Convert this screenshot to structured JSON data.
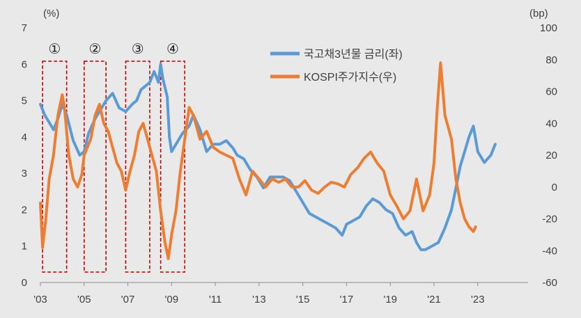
{
  "chart_data": {
    "type": "line",
    "title": "",
    "left_unit": "(%)",
    "right_unit": "(bp)",
    "x_tick_labels": [
      "'03",
      "'05",
      "'07",
      "'09",
      "'11",
      "'13",
      "'15",
      "'17",
      "'19",
      "'21",
      "'23"
    ],
    "x_tick_years": [
      2003,
      2005,
      2007,
      2009,
      2011,
      2013,
      2015,
      2017,
      2019,
      2021,
      2023
    ],
    "xlim": [
      2003,
      2025.3
    ],
    "left_axis": {
      "ylim": [
        0,
        7
      ],
      "ticks": [
        0,
        1,
        2,
        3,
        4,
        5,
        6,
        7
      ]
    },
    "right_axis": {
      "ylim": [
        -60,
        100
      ],
      "ticks": [
        -60,
        -40,
        -20,
        0,
        20,
        40,
        60,
        80,
        100
      ]
    },
    "grid": false,
    "legend_position": "top-right",
    "series": [
      {
        "name": "국고채3년물 금리(좌)",
        "axis": "left",
        "color": "#5b9bd5",
        "x": [
          2003.0,
          2003.2,
          2003.4,
          2003.6,
          2003.8,
          2004.0,
          2004.2,
          2004.5,
          2004.8,
          2005.0,
          2005.2,
          2005.5,
          2005.8,
          2006.0,
          2006.3,
          2006.6,
          2006.9,
          2007.2,
          2007.4,
          2007.6,
          2007.8,
          2008.0,
          2008.2,
          2008.4,
          2008.5,
          2008.6,
          2008.8,
          2008.9,
          2009.0,
          2009.2,
          2009.5,
          2009.8,
          2010.0,
          2010.3,
          2010.6,
          2010.9,
          2011.2,
          2011.5,
          2011.8,
          2012.0,
          2012.3,
          2012.6,
          2012.9,
          2013.2,
          2013.5,
          2013.8,
          2014.1,
          2014.4,
          2014.7,
          2015.0,
          2015.3,
          2015.6,
          2015.9,
          2016.2,
          2016.5,
          2016.8,
          2017.0,
          2017.3,
          2017.6,
          2017.9,
          2018.2,
          2018.5,
          2018.8,
          2019.1,
          2019.4,
          2019.7,
          2020.0,
          2020.2,
          2020.4,
          2020.6,
          2020.9,
          2021.2,
          2021.5,
          2021.8,
          2022.0,
          2022.2,
          2022.4,
          2022.6,
          2022.8,
          2023.0,
          2023.3,
          2023.6,
          2023.8
        ],
        "values": [
          4.9,
          4.6,
          4.4,
          4.2,
          4.5,
          4.9,
          4.6,
          3.9,
          3.5,
          3.6,
          4.1,
          4.5,
          4.8,
          5.0,
          5.2,
          4.8,
          4.7,
          4.9,
          5.0,
          5.3,
          5.4,
          5.5,
          5.8,
          5.5,
          6.0,
          5.6,
          5.1,
          4.0,
          3.6,
          3.8,
          4.1,
          4.3,
          4.6,
          4.2,
          3.6,
          3.8,
          3.8,
          3.9,
          3.7,
          3.5,
          3.4,
          3.1,
          2.9,
          2.6,
          2.9,
          2.9,
          2.9,
          2.8,
          2.5,
          2.2,
          1.9,
          1.8,
          1.7,
          1.6,
          1.5,
          1.3,
          1.6,
          1.7,
          1.8,
          2.1,
          2.3,
          2.2,
          2.0,
          1.9,
          1.5,
          1.3,
          1.4,
          1.1,
          0.9,
          0.9,
          1.0,
          1.1,
          1.5,
          2.0,
          2.6,
          3.2,
          3.6,
          4.0,
          4.3,
          3.6,
          3.3,
          3.5,
          3.8
        ]
      },
      {
        "name": "KOSPI주가지수(우)",
        "axis": "right",
        "color": "#ed7d31",
        "x": [
          2003.0,
          2003.1,
          2003.25,
          2003.4,
          2003.6,
          2003.8,
          2004.0,
          2004.1,
          2004.3,
          2004.5,
          2004.7,
          2004.9,
          2005.0,
          2005.3,
          2005.5,
          2005.7,
          2005.9,
          2006.1,
          2006.3,
          2006.5,
          2006.7,
          2006.9,
          2007.1,
          2007.3,
          2007.5,
          2007.7,
          2007.9,
          2008.1,
          2008.3,
          2008.5,
          2008.7,
          2008.85,
          2009.0,
          2009.2,
          2009.4,
          2009.6,
          2009.8,
          2010.0,
          2010.3,
          2010.6,
          2010.9,
          2011.2,
          2011.5,
          2011.8,
          2012.1,
          2012.4,
          2012.7,
          2013.0,
          2013.3,
          2013.6,
          2013.9,
          2014.2,
          2014.5,
          2014.8,
          2015.1,
          2015.4,
          2015.7,
          2016.0,
          2016.3,
          2016.6,
          2016.9,
          2017.2,
          2017.5,
          2017.8,
          2018.1,
          2018.4,
          2018.7,
          2019.0,
          2019.3,
          2019.6,
          2019.9,
          2020.2,
          2020.5,
          2020.8,
          2021.0,
          2021.15,
          2021.3,
          2021.5,
          2021.8,
          2022.0,
          2022.2,
          2022.4,
          2022.6,
          2022.8,
          2022.9
        ],
        "values": [
          -10,
          -38,
          -20,
          5,
          20,
          45,
          58,
          50,
          20,
          5,
          0,
          8,
          20,
          30,
          45,
          52,
          40,
          35,
          25,
          15,
          10,
          -2,
          10,
          20,
          35,
          40,
          30,
          20,
          10,
          -15,
          -35,
          -45,
          -30,
          -15,
          10,
          30,
          50,
          45,
          30,
          35,
          25,
          22,
          20,
          18,
          5,
          -5,
          10,
          5,
          0,
          5,
          3,
          5,
          0,
          0,
          4,
          -2,
          -4,
          0,
          3,
          2,
          0,
          8,
          12,
          18,
          22,
          15,
          10,
          -5,
          -12,
          -20,
          -15,
          5,
          -15,
          -5,
          15,
          50,
          78,
          45,
          30,
          5,
          -10,
          -20,
          -25,
          -28,
          -25
        ]
      }
    ],
    "annotations": [
      {
        "label": "①",
        "x_start": 2003.1,
        "x_end": 2004.2
      },
      {
        "label": "②",
        "x_start": 2005.0,
        "x_end": 2006.0
      },
      {
        "label": "③",
        "x_start": 2006.9,
        "x_end": 2008.0
      },
      {
        "label": "④",
        "x_start": 2008.5,
        "x_end": 2009.6
      }
    ]
  }
}
